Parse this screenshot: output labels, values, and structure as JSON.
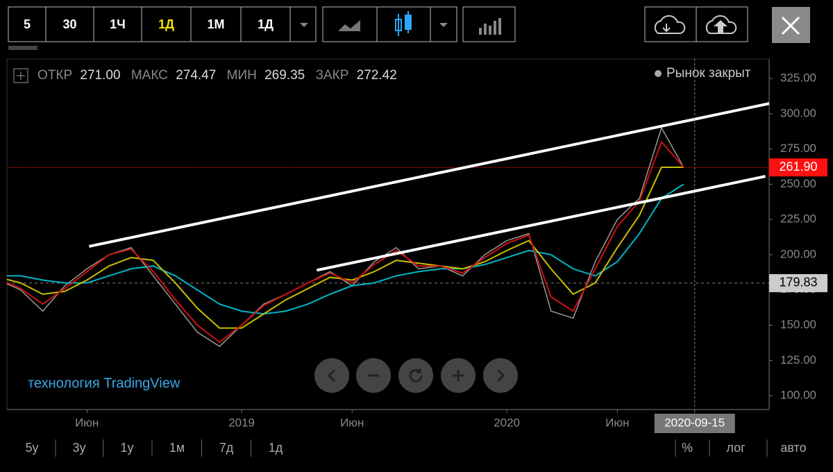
{
  "toolbar": {
    "intervals": [
      "5",
      "30",
      "1Ч",
      "1Д",
      "1М",
      "1Д"
    ]
  },
  "legend": {
    "open_label": "ОТКР",
    "open": "271.00",
    "high_label": "МАКС",
    "high": "274.47",
    "low_label": "МИН",
    "low": "269.35",
    "close_label": "ЗАКР",
    "close": "272.42",
    "status": "Рынок закрыт"
  },
  "watermark": "технология TradingView",
  "chart_data": {
    "type": "line",
    "categories": [
      null,
      null,
      null,
      null,
      null,
      null,
      null,
      null,
      null,
      null,
      null,
      null,
      null,
      null,
      null,
      null,
      null,
      null,
      null,
      null,
      null,
      null,
      null,
      null,
      null,
      null,
      null,
      null,
      null,
      null,
      null,
      null
    ],
    "xlim": [
      0.38,
      34.87
    ],
    "ylim": [
      90.2,
      338.8
    ],
    "xticks": [
      {
        "value": 4,
        "label": "Июн"
      },
      {
        "value": 11,
        "label": "2019"
      },
      {
        "value": 16,
        "label": "Июн"
      },
      {
        "value": 23,
        "label": "2020"
      },
      {
        "value": 28,
        "label": "Июн"
      },
      {
        "value": 31.5,
        "label": "2020-09-15"
      }
    ],
    "yticks": [
      {
        "value": 100,
        "label": "100.00"
      },
      {
        "value": 125,
        "label": "125.00"
      },
      {
        "value": 150,
        "label": "150.00"
      },
      {
        "value": 175,
        "label": "175.00"
      },
      {
        "value": 200,
        "label": "200.00"
      },
      {
        "value": 225,
        "label": "225.00"
      },
      {
        "value": 250,
        "label": "250.00"
      },
      {
        "value": 275,
        "label": "275.00"
      },
      {
        "value": 300,
        "label": "300.00"
      },
      {
        "value": 325,
        "label": "325.00"
      }
    ],
    "series": [
      {
        "color": "#9a9a9a",
        "values": [
          182,
          175,
          160,
          178,
          190,
          200,
          205,
          185,
          165,
          145,
          135,
          150,
          165,
          172,
          180,
          188,
          178,
          195,
          205,
          190,
          192,
          185,
          200,
          210,
          215,
          160,
          155,
          195,
          225,
          240,
          290,
          262
        ]
      },
      {
        "color": "#00b7c7",
        "values": [
          185,
          185,
          182,
          180,
          180,
          185,
          190,
          192,
          185,
          175,
          165,
          160,
          158,
          160,
          165,
          172,
          178,
          180,
          185,
          188,
          190,
          190,
          193,
          198,
          203,
          200,
          190,
          185,
          195,
          215,
          240,
          250
        ]
      },
      {
        "color": "#c8c000",
        "values": [
          184,
          180,
          172,
          174,
          182,
          192,
          198,
          196,
          180,
          162,
          148,
          148,
          158,
          168,
          176,
          184,
          182,
          188,
          196,
          194,
          192,
          190,
          195,
          203,
          210,
          190,
          172,
          180,
          205,
          228,
          262,
          262
        ]
      },
      {
        "color": "#d01010",
        "values": [
          183,
          176,
          165,
          176,
          188,
          200,
          204,
          188,
          168,
          150,
          138,
          150,
          164,
          172,
          180,
          187,
          180,
          193,
          203,
          192,
          192,
          187,
          198,
          208,
          214,
          170,
          160,
          190,
          220,
          238,
          280,
          262
        ]
      }
    ],
    "trendlines": [
      {
        "color": "#ffffff",
        "x": [
          4.1,
          34.9
        ],
        "values": [
          205.9,
          307.3
        ]
      },
      {
        "color": "#ffffff",
        "x": [
          14.4,
          34.7
        ],
        "values": [
          189,
          255.6
        ]
      }
    ],
    "price_lines": [
      {
        "value": 261.9,
        "label": "261.90",
        "color": "#ff1010"
      },
      {
        "value": 179.83,
        "label": "179.83",
        "color": "#888888"
      }
    ]
  },
  "range_bar": {
    "ranges": [
      "5у",
      "3у",
      "1у",
      "1м",
      "7д",
      "1д"
    ],
    "options": [
      "%",
      "лог",
      "авто"
    ]
  }
}
